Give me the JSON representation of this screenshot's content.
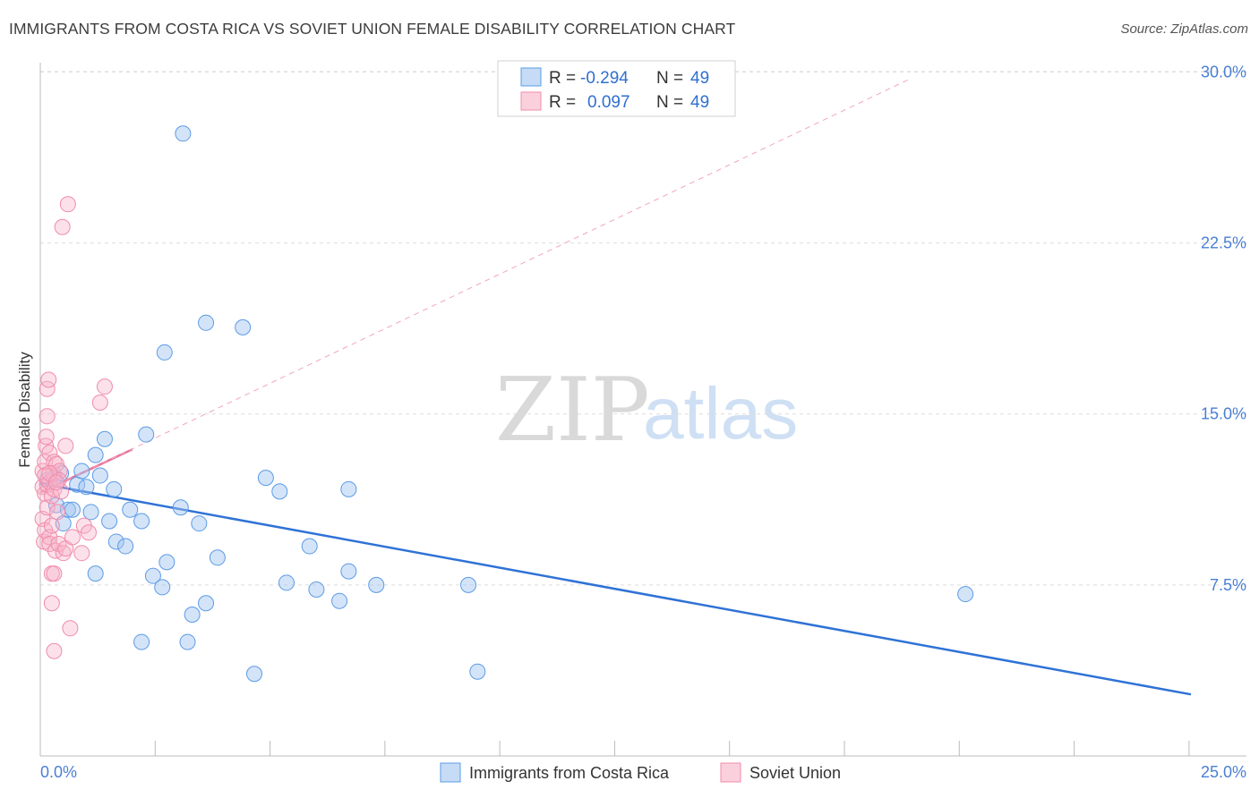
{
  "header": {
    "title": "IMMIGRANTS FROM COSTA RICA VS SOVIET UNION FEMALE DISABILITY CORRELATION CHART",
    "source": "Source: ZipAtlas.com"
  },
  "watermark": {
    "zip": "ZIP",
    "atlas": "atlas"
  },
  "legend": {
    "rows": [
      {
        "r_label": "R =",
        "r_value": "-0.294",
        "n_label": "N =",
        "n_value": "49",
        "color": "#5b9be6"
      },
      {
        "r_label": "R =",
        "r_value": "0.097",
        "n_label": "N =",
        "n_value": "49",
        "color": "#f08cab"
      }
    ]
  },
  "chart_data": {
    "type": "scatter",
    "title": "IMMIGRANTS FROM COSTA RICA VS SOVIET UNION FEMALE DISABILITY CORRELATION CHART",
    "xlabel": "",
    "ylabel": "Female Disability",
    "xlim": [
      0,
      25
    ],
    "ylim": [
      0,
      31
    ],
    "x_tick_labels": [
      "0.0%",
      "25.0%"
    ],
    "y_ticks": [
      7.5,
      15.0,
      22.5,
      30.0
    ],
    "y_tick_labels": [
      "7.5%",
      "15.0%",
      "22.5%",
      "30.0%"
    ],
    "grid": true,
    "legend_position": "top-center",
    "series": [
      {
        "name": "Immigrants from Costa Rica",
        "color": "#5b9be6",
        "points": [
          [
            0.15,
            12.1
          ],
          [
            0.3,
            12.2
          ],
          [
            0.35,
            11.0
          ],
          [
            0.45,
            12.4
          ],
          [
            0.5,
            10.2
          ],
          [
            0.6,
            10.8
          ],
          [
            0.7,
            10.8
          ],
          [
            0.8,
            11.9
          ],
          [
            0.9,
            12.5
          ],
          [
            1.0,
            11.8
          ],
          [
            1.1,
            10.7
          ],
          [
            1.2,
            13.2
          ],
          [
            1.3,
            12.3
          ],
          [
            1.4,
            13.9
          ],
          [
            1.5,
            10.3
          ],
          [
            1.6,
            11.7
          ],
          [
            1.65,
            9.4
          ],
          [
            1.85,
            9.2
          ],
          [
            1.95,
            10.8
          ],
          [
            2.2,
            10.3
          ],
          [
            2.3,
            14.1
          ],
          [
            2.45,
            7.9
          ],
          [
            2.65,
            7.4
          ],
          [
            2.7,
            17.7
          ],
          [
            2.75,
            8.5
          ],
          [
            3.05,
            10.9
          ],
          [
            3.1,
            27.3
          ],
          [
            3.2,
            5.0
          ],
          [
            3.3,
            6.2
          ],
          [
            3.45,
            10.2
          ],
          [
            3.6,
            6.7
          ],
          [
            3.6,
            19.0
          ],
          [
            3.85,
            8.7
          ],
          [
            4.4,
            18.8
          ],
          [
            4.65,
            3.6
          ],
          [
            4.9,
            12.2
          ],
          [
            5.2,
            11.6
          ],
          [
            5.35,
            7.6
          ],
          [
            5.85,
            9.2
          ],
          [
            6.0,
            7.3
          ],
          [
            6.5,
            6.8
          ],
          [
            6.7,
            11.7
          ],
          [
            6.7,
            8.1
          ],
          [
            7.3,
            7.5
          ],
          [
            9.3,
            7.5
          ],
          [
            9.5,
            3.7
          ],
          [
            20.1,
            7.1
          ],
          [
            1.2,
            8.0
          ],
          [
            2.2,
            5.0
          ]
        ]
      },
      {
        "name": "Soviet Union",
        "color": "#f08cab",
        "points": [
          [
            0.05,
            12.5
          ],
          [
            0.05,
            11.8
          ],
          [
            0.05,
            10.4
          ],
          [
            0.08,
            9.4
          ],
          [
            0.1,
            12.9
          ],
          [
            0.1,
            11.5
          ],
          [
            0.1,
            9.9
          ],
          [
            0.12,
            13.6
          ],
          [
            0.13,
            14.0
          ],
          [
            0.15,
            16.1
          ],
          [
            0.15,
            14.9
          ],
          [
            0.15,
            11.9
          ],
          [
            0.15,
            10.9
          ],
          [
            0.18,
            16.5
          ],
          [
            0.2,
            13.3
          ],
          [
            0.2,
            12.0
          ],
          [
            0.2,
            9.6
          ],
          [
            0.2,
            9.3
          ],
          [
            0.25,
            6.7
          ],
          [
            0.25,
            8.0
          ],
          [
            0.25,
            11.4
          ],
          [
            0.25,
            10.1
          ],
          [
            0.28,
            12.4
          ],
          [
            0.3,
            12.9
          ],
          [
            0.3,
            11.7
          ],
          [
            0.3,
            8.0
          ],
          [
            0.3,
            4.6
          ],
          [
            0.33,
            9.0
          ],
          [
            0.35,
            12.8
          ],
          [
            0.37,
            10.7
          ],
          [
            0.4,
            9.3
          ],
          [
            0.42,
            12.5
          ],
          [
            0.45,
            11.6
          ],
          [
            0.48,
            23.2
          ],
          [
            0.5,
            8.9
          ],
          [
            0.55,
            13.6
          ],
          [
            0.55,
            9.1
          ],
          [
            0.6,
            24.2
          ],
          [
            0.65,
            5.6
          ],
          [
            0.7,
            9.6
          ],
          [
            0.9,
            8.9
          ],
          [
            0.95,
            10.1
          ],
          [
            1.05,
            9.8
          ],
          [
            1.3,
            15.5
          ],
          [
            1.4,
            16.2
          ],
          [
            0.4,
            12.1
          ],
          [
            0.1,
            12.3
          ],
          [
            0.2,
            12.4
          ],
          [
            0.35,
            12.0
          ]
        ]
      }
    ],
    "trendlines": [
      {
        "series": "Immigrants from Costa Rica",
        "x": [
          0,
          25
        ],
        "y": [
          11.95,
          2.7
        ],
        "style": "solid"
      },
      {
        "series": "Soviet Union",
        "x": [
          0,
          2.0
        ],
        "y": [
          11.55,
          13.45
        ],
        "style": "solid"
      },
      {
        "series": "Soviet Union",
        "x": [
          0,
          18.9
        ],
        "y": [
          11.55,
          29.7
        ],
        "style": "dashed"
      }
    ]
  }
}
